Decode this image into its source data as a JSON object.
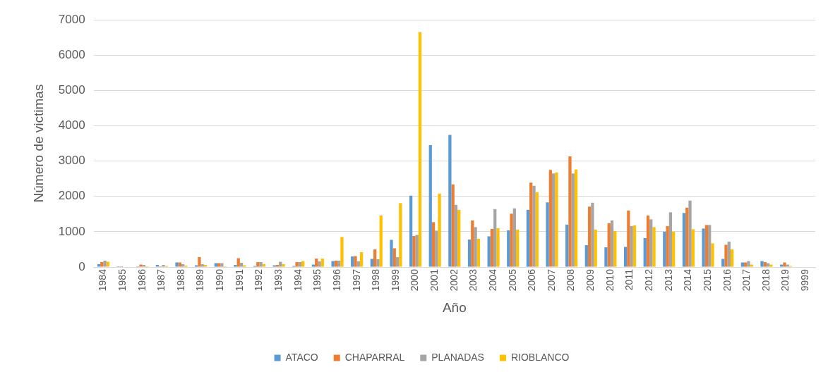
{
  "chart_data": {
    "type": "bar",
    "categories": [
      "1984",
      "1985",
      "1986",
      "1987",
      "1988",
      "1989",
      "1990",
      "1991",
      "1992",
      "1993",
      "1994",
      "1995",
      "1996",
      "1997",
      "1998",
      "1999",
      "2000",
      "2001",
      "2002",
      "2003",
      "2004",
      "2005",
      "2006",
      "2007",
      "2008",
      "2009",
      "2010",
      "2011",
      "2012",
      "2013",
      "2014",
      "2015",
      "2016",
      "2017",
      "2018",
      "2019",
      "9999"
    ],
    "xlabel": "Año",
    "ylabel": "Número de victimas",
    "ylim": [
      0,
      7000
    ],
    "yticks": [
      0,
      1000,
      2000,
      3000,
      4000,
      5000,
      6000,
      7000
    ],
    "grid": "y",
    "legend": "bottom",
    "series": [
      {
        "name": "ATACO",
        "color": "#5b9bd5",
        "values": [
          80,
          20,
          20,
          60,
          130,
          50,
          110,
          60,
          30,
          50,
          30,
          70,
          170,
          300,
          230,
          770,
          2020,
          3450,
          3740,
          780,
          870,
          1040,
          1620,
          1830,
          1200,
          620,
          560,
          570,
          820,
          1000,
          1530,
          1090,
          230,
          130,
          170,
          70,
          10
        ]
      },
      {
        "name": "CHAPARRAL",
        "color": "#ed7d31",
        "values": [
          140,
          20,
          70,
          20,
          130,
          280,
          110,
          250,
          140,
          60,
          140,
          240,
          180,
          310,
          500,
          530,
          880,
          1270,
          2340,
          1320,
          1080,
          1510,
          2390,
          2750,
          3130,
          1710,
          1240,
          1600,
          1460,
          1160,
          1680,
          1190,
          630,
          130,
          140,
          130,
          10
        ]
      },
      {
        "name": "PLANADAS",
        "color": "#a5a5a5",
        "values": [
          180,
          null,
          60,
          60,
          80,
          80,
          110,
          120,
          140,
          150,
          140,
          160,
          180,
          160,
          220,
          280,
          910,
          1030,
          1760,
          1130,
          1640,
          1660,
          2300,
          2650,
          2650,
          1820,
          1320,
          1160,
          1350,
          1550,
          1880,
          1190,
          720,
          170,
          110,
          70,
          null
        ]
      },
      {
        "name": "RIOBLANCO",
        "color": "#ffc000",
        "values": [
          150,
          10,
          20,
          30,
          40,
          60,
          20,
          50,
          80,
          80,
          170,
          240,
          850,
          420,
          1460,
          1810,
          6650,
          2080,
          1620,
          800,
          1100,
          1060,
          2120,
          2680,
          2760,
          1060,
          1020,
          1180,
          1130,
          1000,
          1070,
          670,
          500,
          70,
          70,
          30,
          null
        ]
      }
    ]
  }
}
